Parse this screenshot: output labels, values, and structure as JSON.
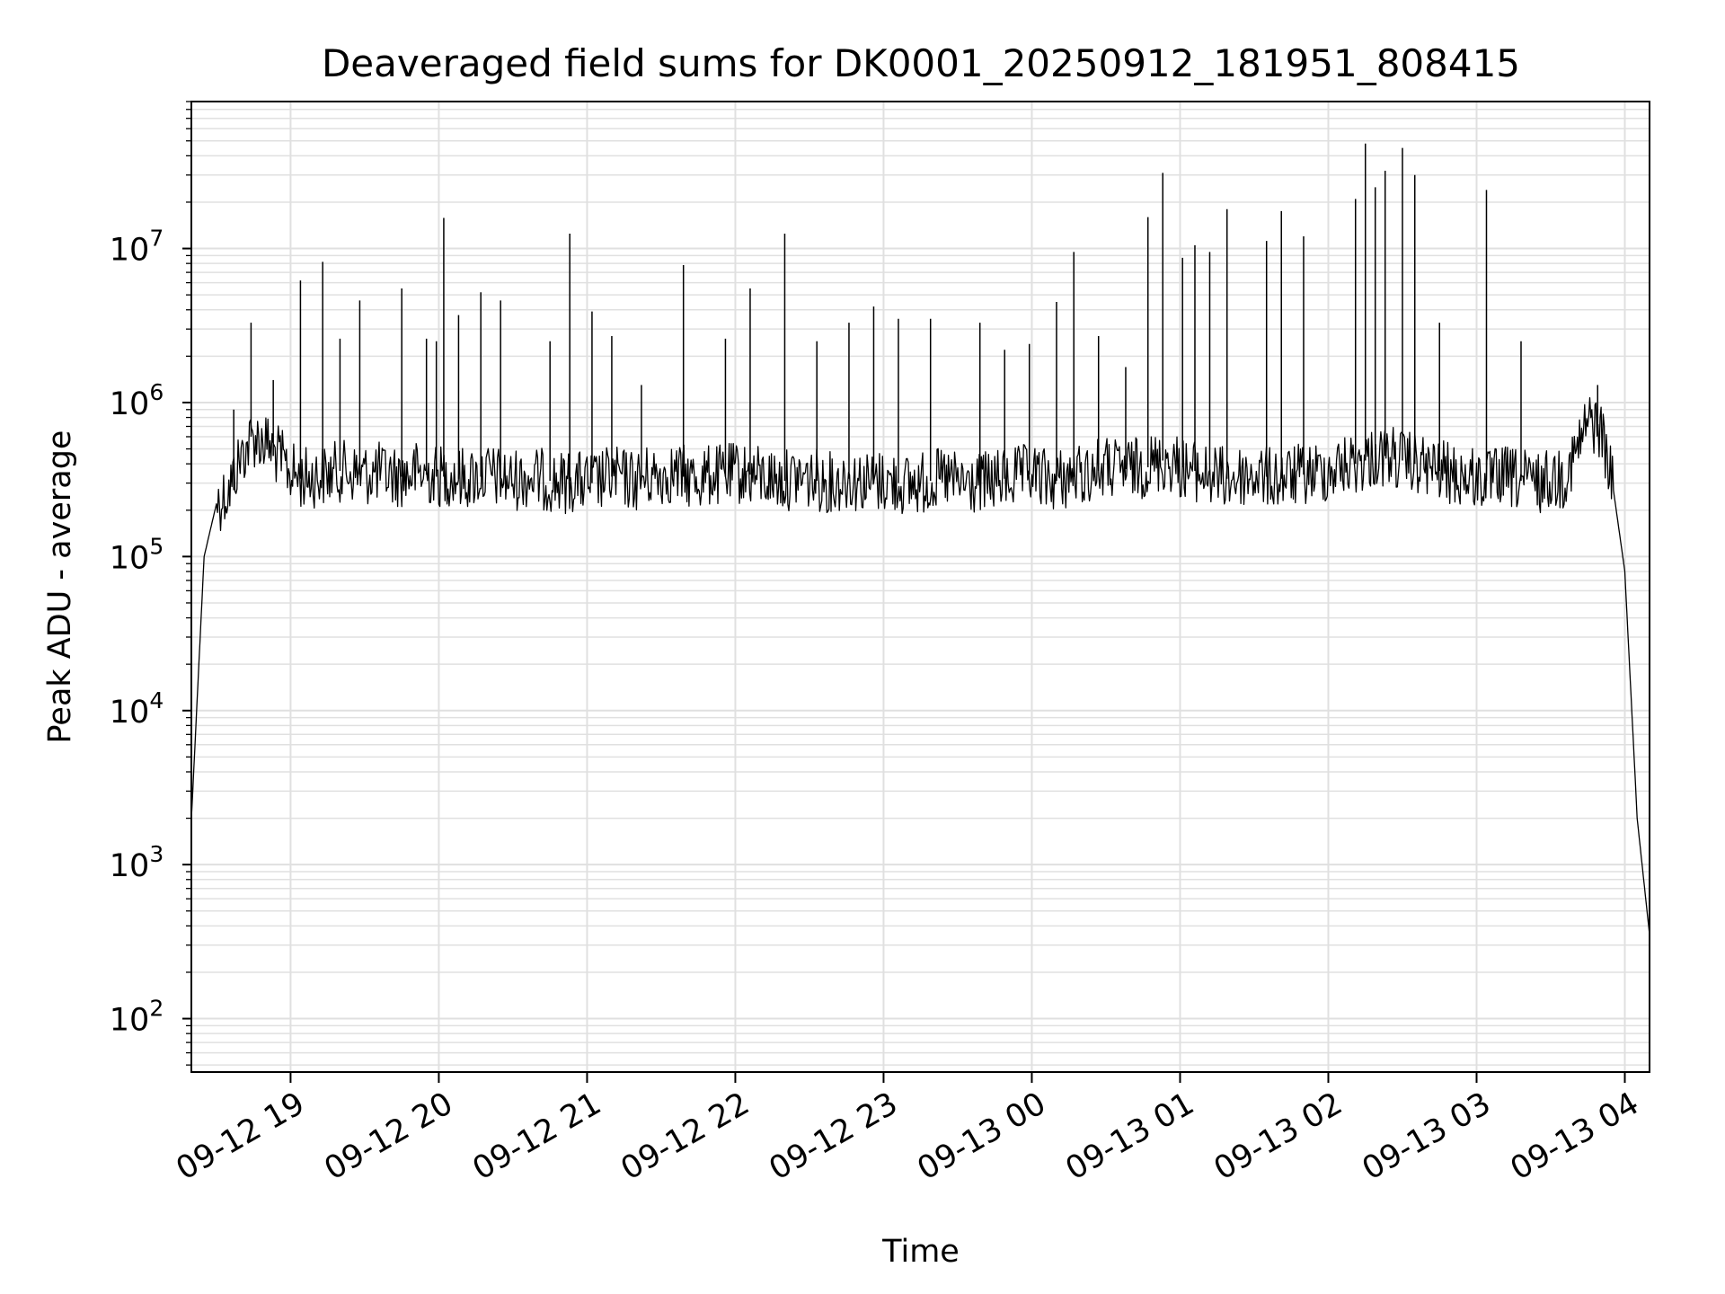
{
  "chart_data": {
    "type": "line",
    "title": "Deaveraged field sums for DK0001_20250912_181951_808415",
    "xlabel": "Time",
    "ylabel": "Peak ADU - average",
    "yscale": "log",
    "ylim": [
      45,
      90000000
    ],
    "xlim": [
      "09-12 18:19:51",
      "09-13 04:10:00"
    ],
    "grid": true,
    "line_color": "#000000",
    "grid_color": "#e0e0e0",
    "x_ticks": [
      "09-12 19",
      "09-12 20",
      "09-12 21",
      "09-12 22",
      "09-12 23",
      "09-13 00",
      "09-13 01",
      "09-13 02",
      "09-13 03",
      "09-13 04"
    ],
    "y_ticks": [
      {
        "base": "10",
        "exp": "2"
      },
      {
        "base": "10",
        "exp": "3"
      },
      {
        "base": "10",
        "exp": "4"
      },
      {
        "base": "10",
        "exp": "5"
      },
      {
        "base": "10",
        "exp": "6"
      },
      {
        "base": "10",
        "exp": "7"
      }
    ],
    "x": [
      "09-12 18:20",
      "09-12 18:25",
      "09-12 18:30",
      "09-12 18:35",
      "09-12 18:40",
      "09-12 18:45",
      "09-12 18:50",
      "09-12 18:55",
      "09-12 19:00",
      "09-12 19:05",
      "09-12 19:10",
      "09-12 19:15",
      "09-12 19:20",
      "09-12 19:25",
      "09-12 19:30",
      "09-12 19:35",
      "09-12 19:40",
      "09-12 19:45",
      "09-12 19:50",
      "09-12 19:55",
      "09-12 20:00",
      "09-12 20:05",
      "09-12 20:10",
      "09-12 20:15",
      "09-12 20:20",
      "09-12 20:25",
      "09-12 20:30",
      "09-12 20:35",
      "09-12 20:40",
      "09-12 20:45",
      "09-12 20:50",
      "09-12 20:55",
      "09-12 21:00",
      "09-12 21:05",
      "09-12 21:10",
      "09-12 21:15",
      "09-12 21:20",
      "09-12 21:25",
      "09-12 21:30",
      "09-12 21:35",
      "09-12 21:40",
      "09-12 21:45",
      "09-12 21:50",
      "09-12 21:55",
      "09-12 22:00",
      "09-12 22:05",
      "09-12 22:10",
      "09-12 22:15",
      "09-12 22:20",
      "09-12 22:25",
      "09-12 22:30",
      "09-12 22:35",
      "09-12 22:40",
      "09-12 22:45",
      "09-12 22:50",
      "09-12 22:55",
      "09-12 23:00",
      "09-12 23:05",
      "09-12 23:10",
      "09-12 23:15",
      "09-12 23:20",
      "09-12 23:25",
      "09-12 23:30",
      "09-12 23:35",
      "09-12 23:40",
      "09-12 23:45",
      "09-12 23:50",
      "09-12 23:55",
      "09-13 00:00",
      "09-13 00:05",
      "09-13 00:10",
      "09-13 00:15",
      "09-13 00:20",
      "09-13 00:25",
      "09-13 00:30",
      "09-13 00:35",
      "09-13 00:40",
      "09-13 00:45",
      "09-13 00:50",
      "09-13 00:55",
      "09-13 01:00",
      "09-13 01:05",
      "09-13 01:10",
      "09-13 01:15",
      "09-13 01:20",
      "09-13 01:25",
      "09-13 01:30",
      "09-13 01:35",
      "09-13 01:40",
      "09-13 01:45",
      "09-13 01:50",
      "09-13 01:55",
      "09-13 02:00",
      "09-13 02:05",
      "09-13 02:10",
      "09-13 02:15",
      "09-13 02:20",
      "09-13 02:25",
      "09-13 02:30",
      "09-13 02:35",
      "09-13 02:40",
      "09-13 02:45",
      "09-13 02:50",
      "09-13 02:55",
      "09-13 03:00",
      "09-13 03:05",
      "09-13 03:10",
      "09-13 03:15",
      "09-13 03:20",
      "09-13 03:25",
      "09-13 03:30",
      "09-13 03:35",
      "09-13 03:40",
      "09-13 03:45",
      "09-13 03:50",
      "09-13 03:55",
      "09-13 04:00",
      "09-13 04:05",
      "09-13 04:10"
    ],
    "y": [
      2200,
      100000,
      220000,
      270000,
      450000,
      600000,
      550000,
      450000,
      350000,
      320000,
      330000,
      340000,
      360000,
      350000,
      340000,
      350000,
      340000,
      330000,
      350000,
      340000,
      330000,
      340000,
      320000,
      330000,
      340000,
      320000,
      310000,
      330000,
      320000,
      310000,
      300000,
      310000,
      300000,
      310000,
      330000,
      320000,
      310000,
      330000,
      340000,
      350000,
      330000,
      320000,
      340000,
      330000,
      350000,
      340000,
      330000,
      320000,
      310000,
      330000,
      320000,
      310000,
      300000,
      320000,
      310000,
      300000,
      310000,
      300000,
      290000,
      300000,
      310000,
      320000,
      300000,
      290000,
      300000,
      310000,
      320000,
      330000,
      340000,
      320000,
      310000,
      330000,
      340000,
      360000,
      380000,
      360000,
      370000,
      380000,
      400000,
      420000,
      380000,
      360000,
      340000,
      330000,
      320000,
      330000,
      340000,
      330000,
      320000,
      330000,
      340000,
      350000,
      360000,
      380000,
      400000,
      420000,
      440000,
      450000,
      420000,
      400000,
      380000,
      360000,
      340000,
      330000,
      320000,
      310000,
      330000,
      320000,
      310000,
      300000,
      320000,
      330000,
      450000,
      750000,
      700000,
      300000,
      80000,
      2000,
      350
    ],
    "spikes": [
      {
        "x": "09-12 18:37",
        "y": 900000
      },
      {
        "x": "09-12 18:44",
        "y": 3300000
      },
      {
        "x": "09-12 18:53",
        "y": 1400000
      },
      {
        "x": "09-12 19:04",
        "y": 6200000
      },
      {
        "x": "09-12 19:13",
        "y": 8200000
      },
      {
        "x": "09-12 19:20",
        "y": 2600000
      },
      {
        "x": "09-12 19:28",
        "y": 4600000
      },
      {
        "x": "09-12 19:45",
        "y": 5500000
      },
      {
        "x": "09-12 19:55",
        "y": 2600000
      },
      {
        "x": "09-12 19:59",
        "y": 2500000
      },
      {
        "x": "09-12 20:02",
        "y": 15800000
      },
      {
        "x": "09-12 20:08",
        "y": 3700000
      },
      {
        "x": "09-12 20:17",
        "y": 5200000
      },
      {
        "x": "09-12 20:25",
        "y": 4600000
      },
      {
        "x": "09-12 20:45",
        "y": 2500000
      },
      {
        "x": "09-12 20:53",
        "y": 12500000
      },
      {
        "x": "09-12 21:02",
        "y": 3900000
      },
      {
        "x": "09-12 21:10",
        "y": 2700000
      },
      {
        "x": "09-12 21:22",
        "y": 1300000
      },
      {
        "x": "09-12 21:39",
        "y": 7800000
      },
      {
        "x": "09-12 21:56",
        "y": 2600000
      },
      {
        "x": "09-12 22:06",
        "y": 5500000
      },
      {
        "x": "09-12 22:20",
        "y": 12500000
      },
      {
        "x": "09-12 22:33",
        "y": 2500000
      },
      {
        "x": "09-12 22:46",
        "y": 3300000
      },
      {
        "x": "09-12 22:56",
        "y": 4200000
      },
      {
        "x": "09-12 23:06",
        "y": 3500000
      },
      {
        "x": "09-12 23:19",
        "y": 3500000
      },
      {
        "x": "09-12 23:39",
        "y": 3300000
      },
      {
        "x": "09-12 23:49",
        "y": 2200000
      },
      {
        "x": "09-12 23:59",
        "y": 2400000
      },
      {
        "x": "09-13 00:10",
        "y": 4500000
      },
      {
        "x": "09-13 00:17",
        "y": 9500000
      },
      {
        "x": "09-13 00:27",
        "y": 2700000
      },
      {
        "x": "09-13 00:38",
        "y": 1700000
      },
      {
        "x": "09-13 00:47",
        "y": 16000000
      },
      {
        "x": "09-13 00:53",
        "y": 31000000
      },
      {
        "x": "09-13 01:01",
        "y": 8700000
      },
      {
        "x": "09-13 01:06",
        "y": 10500000
      },
      {
        "x": "09-13 01:12",
        "y": 9500000
      },
      {
        "x": "09-13 01:19",
        "y": 18000000
      },
      {
        "x": "09-13 01:35",
        "y": 11200000
      },
      {
        "x": "09-13 01:41",
        "y": 17500000
      },
      {
        "x": "09-13 01:50",
        "y": 12000000
      },
      {
        "x": "09-13 02:11",
        "y": 21000000
      },
      {
        "x": "09-13 02:15",
        "y": 48000000
      },
      {
        "x": "09-13 02:19",
        "y": 25000000
      },
      {
        "x": "09-13 02:23",
        "y": 32000000
      },
      {
        "x": "09-13 02:30",
        "y": 45000000
      },
      {
        "x": "09-13 02:35",
        "y": 30000000
      },
      {
        "x": "09-13 02:45",
        "y": 3300000
      },
      {
        "x": "09-13 03:04",
        "y": 24000000
      },
      {
        "x": "09-13 03:18",
        "y": 2500000
      },
      {
        "x": "09-13 03:49",
        "y": 1300000
      }
    ]
  }
}
